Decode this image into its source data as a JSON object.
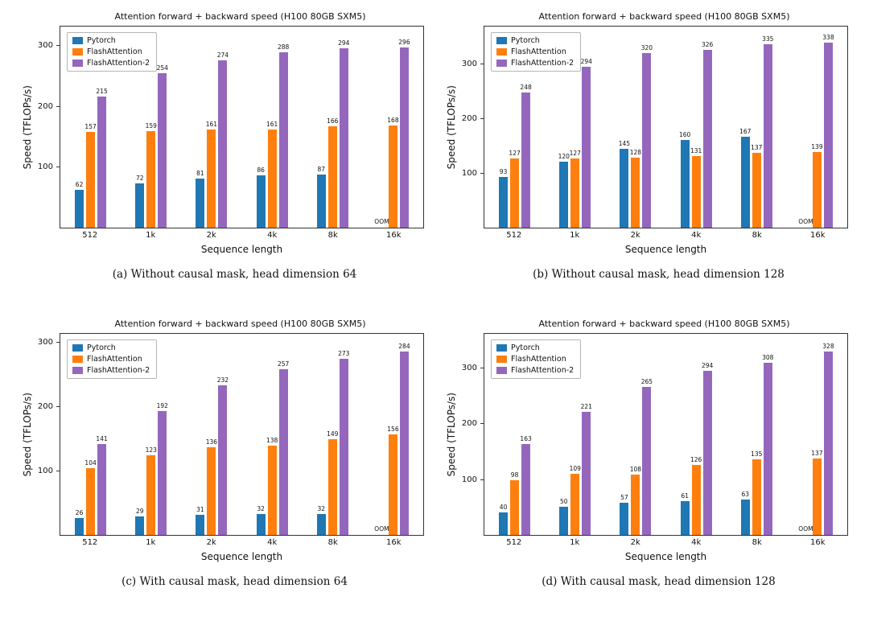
{
  "page": {
    "background": "#ffffff"
  },
  "chart_data": [
    {
      "type": "bar",
      "title": "Attention forward + backward speed (H100 80GB SXM5)",
      "xlabel": "Sequence length",
      "ylabel": "Speed (TFLOPs/s)",
      "caption": "(a) Without causal mask, head dimension 64",
      "categories": [
        "512",
        "1k",
        "2k",
        "4k",
        "8k",
        "16k"
      ],
      "yticks": [
        100,
        200,
        300
      ],
      "ylim": [
        0,
        330
      ],
      "grid": false,
      "legend_position": "upper-left",
      "oom_label": "OOM",
      "series": [
        {
          "name": "Pytorch",
          "color": "#1f77b4",
          "values": [
            62,
            72,
            81,
            86,
            87,
            null
          ]
        },
        {
          "name": "FlashAttention",
          "color": "#ff7f0e",
          "values": [
            157,
            159,
            161,
            161,
            166,
            168
          ]
        },
        {
          "name": "FlashAttention-2",
          "color": "#9467bd",
          "values": [
            215,
            254,
            274,
            288,
            294,
            296
          ]
        }
      ]
    },
    {
      "type": "bar",
      "title": "Attention forward + backward speed (H100 80GB SXM5)",
      "xlabel": "Sequence length",
      "ylabel": "Speed (TFLOPs/s)",
      "caption": "(b) Without causal mask, head dimension 128",
      "categories": [
        "512",
        "1k",
        "2k",
        "4k",
        "8k",
        "16k"
      ],
      "yticks": [
        100,
        200,
        300
      ],
      "ylim": [
        0,
        368
      ],
      "grid": false,
      "legend_position": "upper-left",
      "oom_label": "OOM",
      "series": [
        {
          "name": "Pytorch",
          "color": "#1f77b4",
          "values": [
            93,
            120,
            145,
            160,
            167,
            null
          ]
        },
        {
          "name": "FlashAttention",
          "color": "#ff7f0e",
          "values": [
            127,
            127,
            128,
            131,
            137,
            139
          ]
        },
        {
          "name": "FlashAttention-2",
          "color": "#9467bd",
          "values": [
            248,
            294,
            320,
            326,
            335,
            338
          ]
        }
      ]
    },
    {
      "type": "bar",
      "title": "Attention forward + backward speed (H100 80GB SXM5)",
      "xlabel": "Sequence length",
      "ylabel": "Speed (TFLOPs/s)",
      "caption": "(c) With causal mask, head dimension 64",
      "categories": [
        "512",
        "1k",
        "2k",
        "4k",
        "8k",
        "16k"
      ],
      "yticks": [
        100,
        200,
        300
      ],
      "ylim": [
        0,
        312
      ],
      "grid": false,
      "legend_position": "upper-left",
      "oom_label": "OOM",
      "series": [
        {
          "name": "Pytorch",
          "color": "#1f77b4",
          "values": [
            26,
            29,
            31,
            32,
            32,
            null
          ]
        },
        {
          "name": "FlashAttention",
          "color": "#ff7f0e",
          "values": [
            104,
            123,
            136,
            138,
            149,
            156
          ]
        },
        {
          "name": "FlashAttention-2",
          "color": "#9467bd",
          "values": [
            141,
            192,
            232,
            257,
            273,
            284
          ]
        }
      ]
    },
    {
      "type": "bar",
      "title": "Attention forward + backward speed (H100 80GB SXM5)",
      "xlabel": "Sequence length",
      "ylabel": "Speed (TFLOPs/s)",
      "caption": "(d) With causal mask, head dimension 128",
      "categories": [
        "512",
        "1k",
        "2k",
        "4k",
        "8k",
        "16k"
      ],
      "yticks": [
        100,
        200,
        300
      ],
      "ylim": [
        0,
        360
      ],
      "grid": false,
      "legend_position": "upper-left",
      "oom_label": "OOM",
      "series": [
        {
          "name": "Pytorch",
          "color": "#1f77b4",
          "values": [
            40,
            50,
            57,
            61,
            63,
            null
          ]
        },
        {
          "name": "FlashAttention",
          "color": "#ff7f0e",
          "values": [
            98,
            109,
            108,
            126,
            135,
            137
          ]
        },
        {
          "name": "FlashAttention-2",
          "color": "#9467bd",
          "values": [
            163,
            221,
            265,
            294,
            308,
            328
          ]
        }
      ]
    }
  ]
}
